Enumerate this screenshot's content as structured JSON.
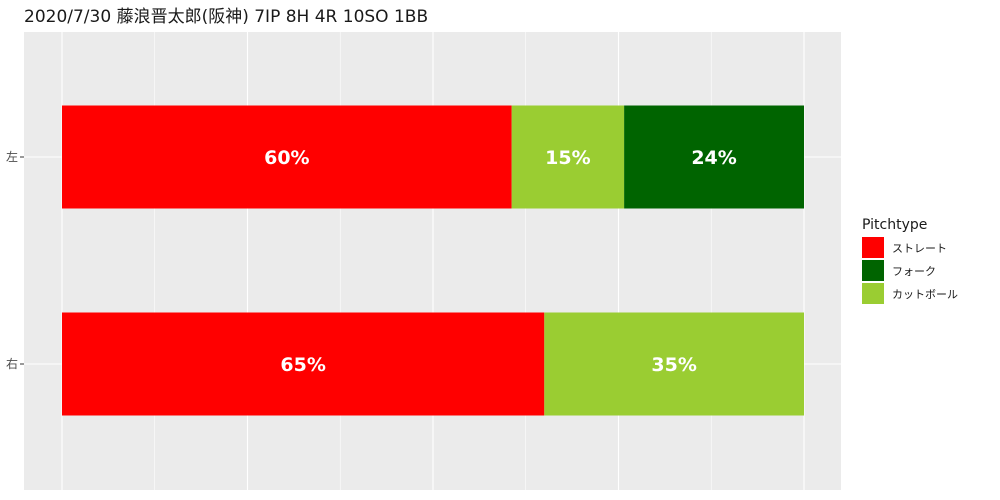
{
  "chart_data": {
    "type": "bar",
    "orientation": "horizontal",
    "stacked": true,
    "title": "2020/7/30 藤浪晋太郎(阪神) 7IP 8H 4R 10SO 1BB",
    "categories": [
      "左",
      "右"
    ],
    "series": [
      {
        "name": "ストレート",
        "color": "#ff0000",
        "values": [
          60,
          65
        ],
        "labels": [
          "60%",
          "65%"
        ]
      },
      {
        "name": "カットボール",
        "color": "#9acd32",
        "values": [
          15,
          35
        ],
        "labels": [
          "15%",
          "35%"
        ]
      },
      {
        "name": "フォーク",
        "color": "#006400",
        "values": [
          24,
          0
        ],
        "labels": [
          "24%",
          ""
        ]
      }
    ],
    "legend": {
      "title": "Pitchtype",
      "position": "right",
      "items": [
        {
          "label": "ストレート",
          "color": "#ff0000"
        },
        {
          "label": "フォーク",
          "color": "#006400"
        },
        {
          "label": "カットボール",
          "color": "#9acd32"
        }
      ]
    },
    "xlim": [
      0,
      100
    ],
    "grid": true,
    "panel_background": "#ebebeb"
  }
}
